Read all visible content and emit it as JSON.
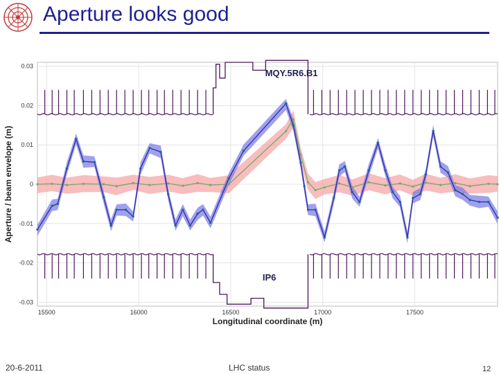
{
  "slide": {
    "title": "Aperture looks good"
  },
  "footer": {
    "date": "20-6-2011",
    "center": "LHC status",
    "page": "12"
  },
  "colors": {
    "aperture": "#4b1459",
    "beam1_line": "#2a2aa0",
    "beam1_band": "#7878e8",
    "beam2_line": "#74a86a",
    "beam2_band": "#f59a9a",
    "marker": "#1c6a8a",
    "title": "#1f1f8f"
  },
  "chart_data": {
    "type": "line",
    "xlabel": "Longitudinal coordinate (m)",
    "ylabel": "Aperture / beam envelope (m)",
    "xlim": [
      15450,
      17950
    ],
    "ylim": [
      -0.031,
      0.031
    ],
    "x_ticks": [
      15500,
      16000,
      16500,
      17000,
      17500
    ],
    "y_ticks": [
      -0.03,
      -0.02,
      -0.01,
      0,
      0.01,
      0.02,
      0.03
    ],
    "y_tick_labels": [
      "-0.03",
      "-0.02",
      "-0.01",
      "0",
      "0.01",
      "0.02",
      "0.03"
    ],
    "grid": true,
    "annotations": [
      {
        "text": "MQY.5R6.B1",
        "x": 16830,
        "y": 0.0275
      },
      {
        "text": "IP6",
        "x": 16710,
        "y": -0.0245
      }
    ],
    "series": [
      {
        "kind": "band-line",
        "x": [
          15450,
          15530,
          15560,
          15610,
          15660,
          15700,
          15760,
          15810,
          15850,
          15880,
          15930,
          15970,
          16010,
          16060,
          16120,
          16160,
          16200,
          16240,
          16280,
          16320,
          16350,
          16390,
          16490,
          16570,
          16800,
          16840,
          16880,
          16900,
          16920,
          16960,
          17010,
          17060,
          17090,
          17120,
          17160,
          17200,
          17250,
          17300,
          17340,
          17380,
          17420,
          17460,
          17490,
          17530,
          17560,
          17600,
          17640,
          17680,
          17720,
          17760,
          17800,
          17850,
          17900,
          17950
        ],
        "y": [
          -0.0115,
          -0.0055,
          -0.005,
          0.004,
          0.0115,
          0.0058,
          0.0056,
          -0.0033,
          -0.0105,
          -0.0065,
          -0.0065,
          -0.0082,
          0.004,
          0.0092,
          0.0082,
          -0.0025,
          -0.0105,
          -0.0065,
          -0.0105,
          -0.0075,
          -0.0065,
          -0.0098,
          0.0015,
          0.0085,
          0.0205,
          0.015,
          0.0055,
          -0.0005,
          -0.0065,
          -0.0065,
          -0.0135,
          -0.0035,
          0.0035,
          0.0045,
          -0.002,
          -0.0045,
          0.0035,
          0.0105,
          0.0035,
          -0.002,
          -0.0045,
          -0.0135,
          -0.0035,
          -0.0025,
          0.0025,
          0.0135,
          0.0045,
          0.003,
          -0.0015,
          -0.0025,
          -0.004,
          -0.0045,
          -0.0045,
          -0.0085
        ],
        "band_halfwidth": 0.0012
      },
      {
        "kind": "band-line",
        "x": [
          15450,
          15530,
          15610,
          15700,
          15810,
          15880,
          15970,
          16060,
          16160,
          16240,
          16320,
          16390,
          16490,
          16800,
          16840,
          16880,
          16920,
          16960,
          17010,
          17090,
          17160,
          17250,
          17340,
          17420,
          17490,
          17560,
          17640,
          17720,
          17800,
          17900,
          17950
        ],
        "y": [
          0,
          0.0001,
          -0.0002,
          0.0001,
          0,
          -0.0005,
          0.0003,
          -0.0002,
          0.0002,
          -0.0004,
          0.0003,
          -0.0002,
          0,
          0.0135,
          0.0165,
          0.0075,
          0.0005,
          -0.0015,
          -0.0008,
          0.0002,
          -0.0008,
          0.0005,
          -0.0003,
          0.0002,
          -0.0006,
          0.0004,
          -0.0002,
          0.0003,
          -0.0005,
          0.0001,
          0
        ],
        "band_halfwidth": 0.0017
      }
    ],
    "aperture": {
      "normal_halfgap": 0.0178,
      "ip_halfgap": 0.029,
      "ip_region": [
        16405,
        16930
      ],
      "ip_profile_upper": [
        [
          16405,
          0.0178
        ],
        [
          16405,
          0.0245
        ],
        [
          16420,
          0.0245
        ],
        [
          16420,
          0.0305
        ],
        [
          16440,
          0.0305
        ],
        [
          16440,
          0.027
        ],
        [
          16470,
          0.027
        ],
        [
          16470,
          0.031
        ],
        [
          16510,
          0.031
        ],
        [
          16540,
          0.031
        ],
        [
          16620,
          0.031
        ],
        [
          16620,
          0.029
        ],
        [
          16690,
          0.029
        ],
        [
          16690,
          0.0315
        ],
        [
          16920,
          0.0315
        ],
        [
          16920,
          0.0178
        ]
      ],
      "ip_profile_lower": [
        [
          16405,
          -0.0178
        ],
        [
          16405,
          -0.025
        ],
        [
          16440,
          -0.025
        ],
        [
          16440,
          -0.028
        ],
        [
          16480,
          -0.028
        ],
        [
          16480,
          -0.0305
        ],
        [
          16510,
          -0.0305
        ],
        [
          16540,
          -0.0305
        ],
        [
          16610,
          -0.0305
        ],
        [
          16610,
          -0.029
        ],
        [
          16680,
          -0.029
        ],
        [
          16680,
          -0.0315
        ],
        [
          16920,
          -0.0315
        ],
        [
          16920,
          -0.0178
        ]
      ],
      "element_positions": [
        15490,
        15530,
        15565,
        15610,
        15650,
        15700,
        15745,
        15790,
        15835,
        15880,
        15925,
        15970,
        16015,
        16055,
        16100,
        16140,
        16185,
        16230,
        16275,
        16320,
        16365,
        16950,
        16995,
        17040,
        17085,
        17130,
        17175,
        17220,
        17265,
        17310,
        17355,
        17400,
        17445,
        17490,
        17535,
        17580,
        17625,
        17670,
        17715,
        17760,
        17805,
        17850,
        17895,
        17935
      ],
      "element_depth": 0.0062
    }
  }
}
